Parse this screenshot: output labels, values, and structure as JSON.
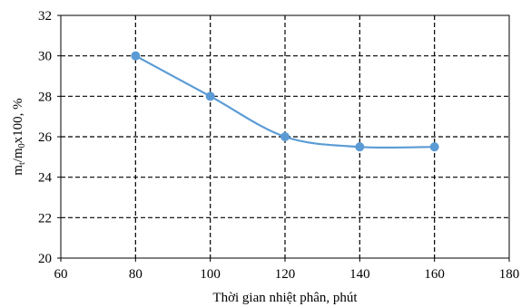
{
  "chart_data": {
    "type": "line",
    "title": "",
    "xlabel": "Thời gian nhiệt phân, phút",
    "ylabel_parts": [
      "m",
      "t",
      "/m",
      "0",
      "x100, %"
    ],
    "xlim": [
      60,
      180
    ],
    "ylim": [
      20,
      32
    ],
    "xticks": [
      60,
      80,
      100,
      120,
      140,
      160,
      180
    ],
    "yticks": [
      20,
      22,
      24,
      26,
      28,
      30,
      32
    ],
    "grid": "dashed",
    "series": [
      {
        "x": [
          80,
          100,
          120,
          140,
          160
        ],
        "y": [
          30,
          28,
          26,
          25.5,
          25.5
        ],
        "color": "#5b9bd5",
        "marker": "circle",
        "smooth": true
      }
    ]
  }
}
